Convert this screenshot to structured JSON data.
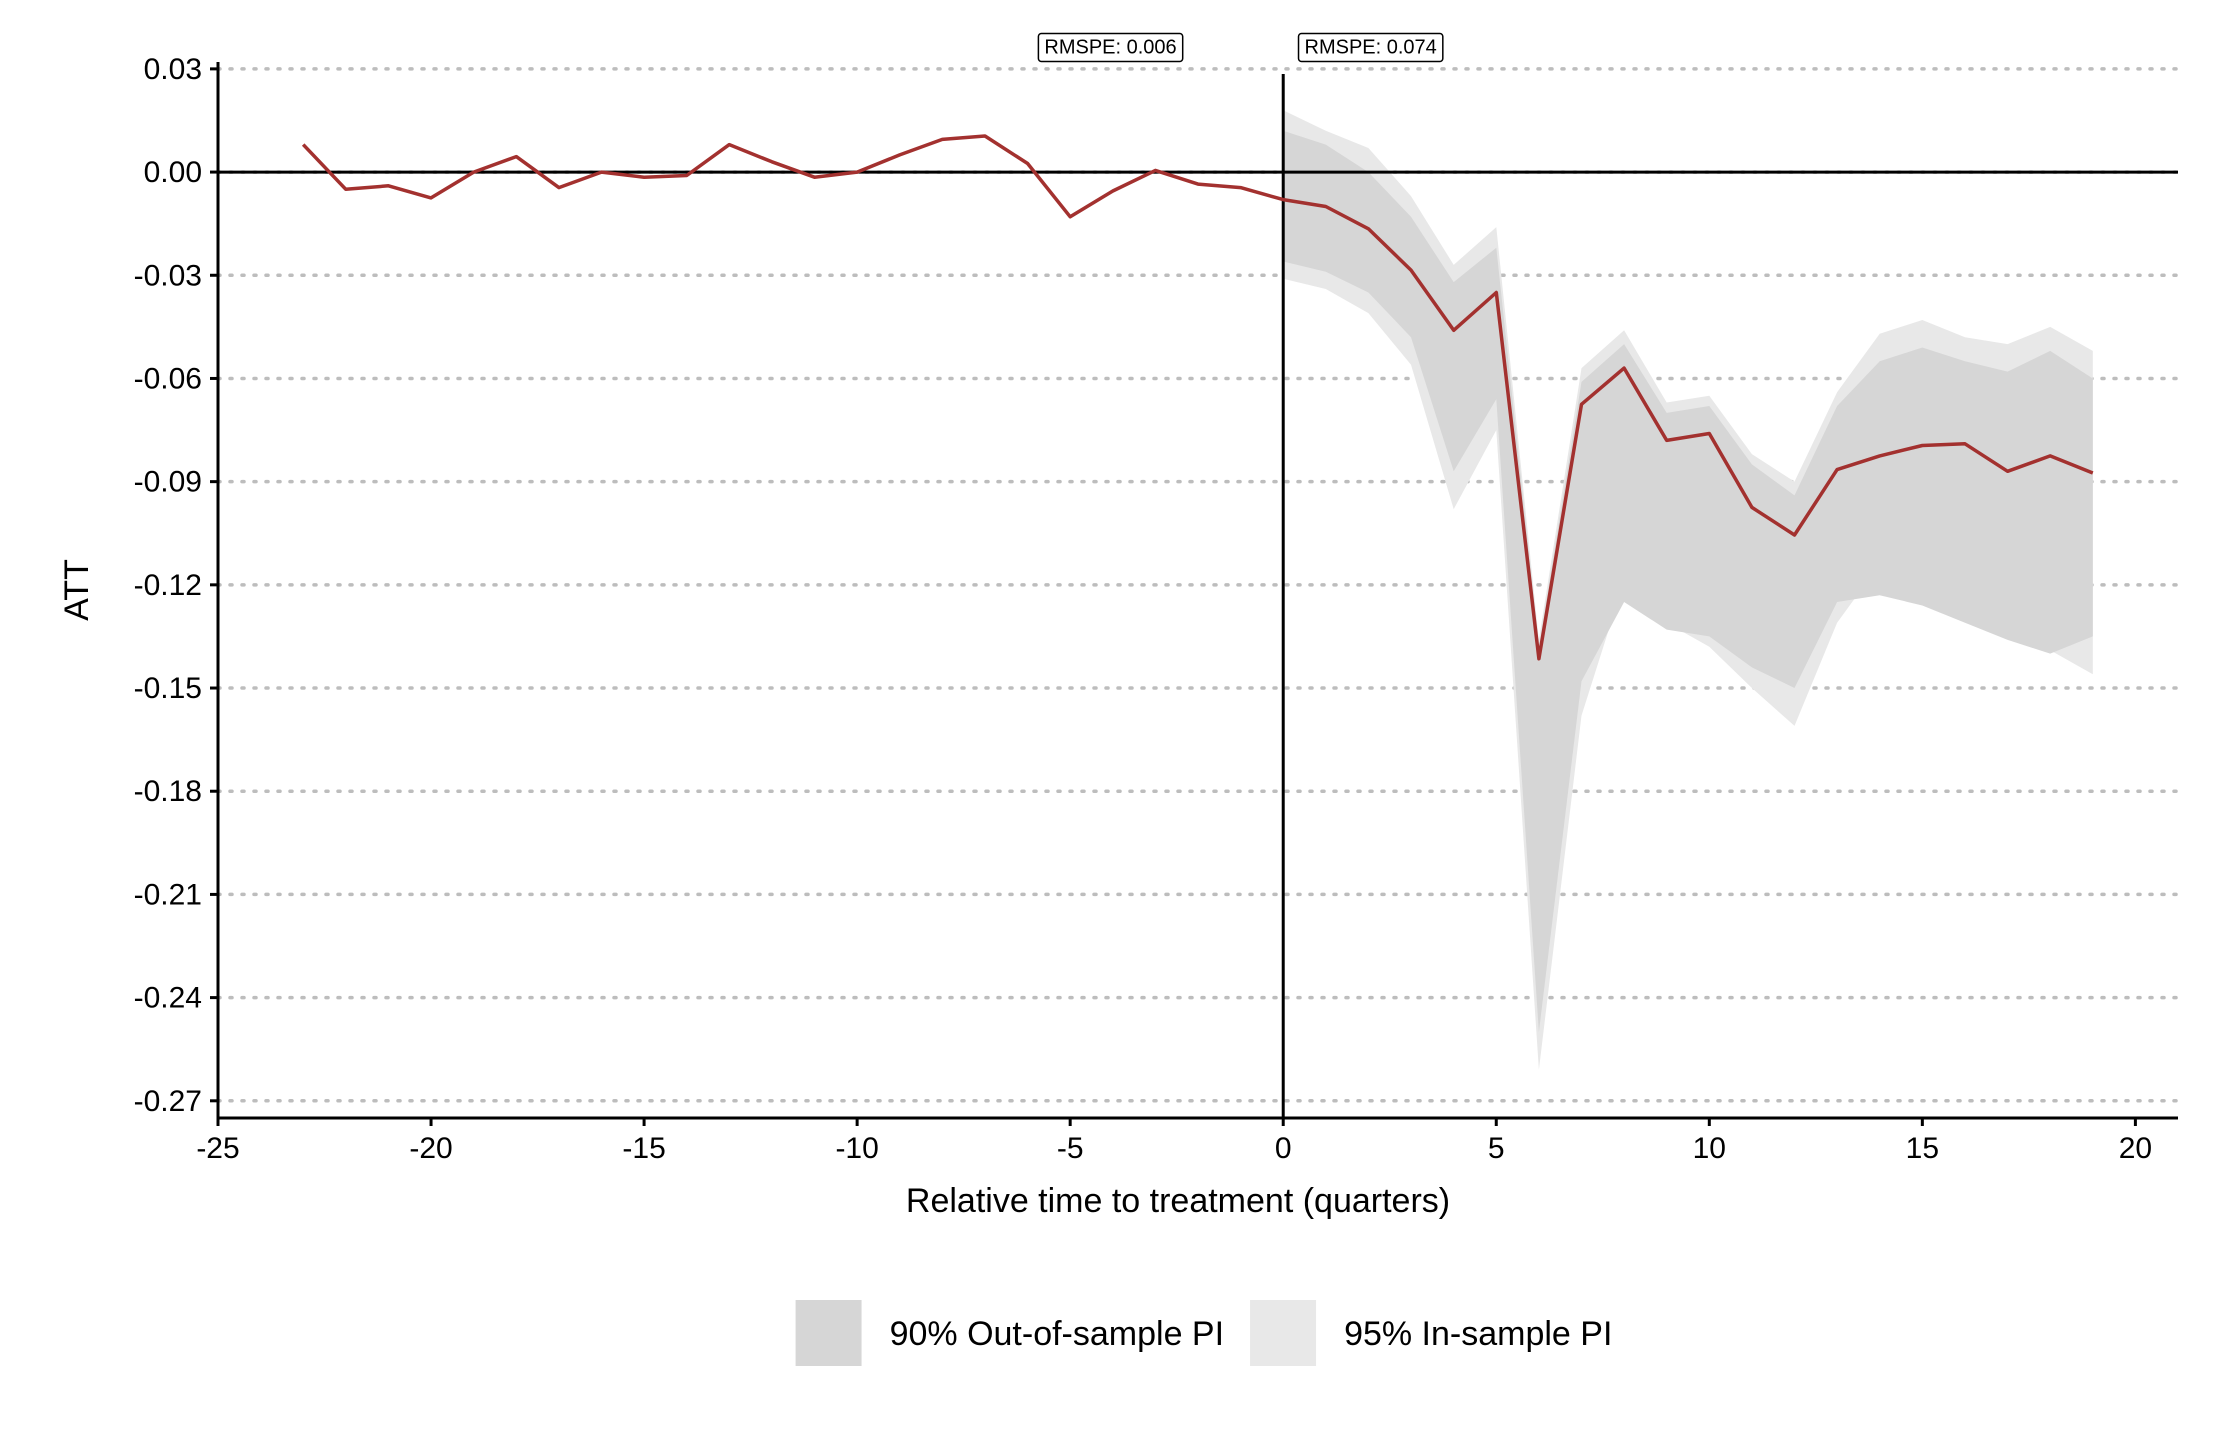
{
  "chart_data": {
    "type": "line",
    "title": "",
    "xlabel": "Relative time to treatment (quarters)",
    "ylabel": "ATT",
    "xlim": [
      -25,
      21
    ],
    "ylim": [
      -0.275,
      0.032
    ],
    "x_ticks": [
      -25,
      -20,
      -15,
      -10,
      -5,
      0,
      5,
      10,
      15,
      20
    ],
    "x_tick_labels": [
      "-25",
      "-20",
      "-15",
      "-10",
      "-5",
      "0",
      "5",
      "10",
      "15",
      "20"
    ],
    "y_ticks": [
      0.03,
      0.0,
      -0.03,
      -0.06,
      -0.09,
      -0.12,
      -0.15,
      -0.18,
      -0.21,
      -0.24,
      -0.27
    ],
    "y_tick_labels": [
      "0.03",
      "0.00",
      "-0.03",
      "-0.06",
      "-0.09",
      "-0.12",
      "-0.15",
      "-0.18",
      "-0.21",
      "-0.24",
      "-0.27"
    ],
    "grid": "horizontal dotted",
    "reference_lines": {
      "horizontal_y": 0,
      "vertical_x": 0
    },
    "colors": {
      "line": "#a3312f",
      "band_90": "#d6d6d6",
      "band_95": "#e8e8e8",
      "grid": "#bdbdbd"
    },
    "annotations": [
      {
        "text": "RMSPE: 0.006",
        "x": -2.5,
        "y": 0.036,
        "anchor": "end"
      },
      {
        "text": "RMSPE: 0.074",
        "x": 0.5,
        "y": 0.036,
        "anchor": "start"
      }
    ],
    "series": [
      {
        "x": [
          -23,
          -22,
          -21,
          -20,
          -19,
          -18,
          -17,
          -16,
          -15,
          -14,
          -13,
          -12,
          -11,
          -10,
          -9,
          -8,
          -7,
          -6,
          -5,
          -4,
          -3,
          -2,
          -1,
          0,
          1,
          2,
          3,
          4,
          5,
          6,
          7,
          8,
          9,
          10,
          11,
          12,
          13,
          14,
          15,
          16,
          17,
          18,
          19
        ],
        "y": [
          0.008,
          -0.005,
          -0.004,
          -0.0075,
          0.0,
          0.0045,
          -0.0045,
          0.0,
          -0.0015,
          -0.001,
          0.008,
          0.003,
          -0.0015,
          0.0,
          0.005,
          0.0095,
          0.0105,
          0.0025,
          -0.013,
          -0.0055,
          0.0005,
          -0.0035,
          -0.0045,
          -0.008,
          -0.01,
          -0.0165,
          -0.0285,
          -0.046,
          -0.035,
          -0.1415,
          -0.0675,
          -0.057,
          -0.078,
          -0.076,
          -0.0975,
          -0.1055,
          -0.0865,
          -0.0825,
          -0.0795,
          -0.079,
          -0.087,
          -0.0825,
          -0.0875
        ]
      }
    ],
    "bands": [
      {
        "name": "95% In-sample PI",
        "x": [
          0,
          1,
          2,
          3,
          4,
          5,
          6,
          7,
          8,
          9,
          10,
          11,
          12,
          13,
          14,
          15,
          16,
          17,
          18,
          19
        ],
        "upper": [
          0.018,
          0.012,
          0.007,
          -0.007,
          -0.027,
          -0.016,
          -0.136,
          -0.057,
          -0.046,
          -0.067,
          -0.065,
          -0.082,
          -0.09,
          -0.064,
          -0.047,
          -0.043,
          -0.048,
          -0.05,
          -0.045,
          -0.052
        ],
        "lower": [
          -0.031,
          -0.034,
          -0.041,
          -0.056,
          -0.098,
          -0.075,
          -0.261,
          -0.158,
          -0.119,
          -0.131,
          -0.138,
          -0.15,
          -0.161,
          -0.131,
          -0.114,
          -0.116,
          -0.124,
          -0.133,
          -0.139,
          -0.146
        ]
      },
      {
        "name": "90% Out-of-sample PI",
        "x": [
          0,
          1,
          2,
          3,
          4,
          5,
          6,
          7,
          8,
          9,
          10,
          11,
          12,
          13,
          14,
          15,
          16,
          17,
          18,
          19
        ],
        "upper": [
          0.012,
          0.008,
          0.0,
          -0.013,
          -0.032,
          -0.022,
          -0.138,
          -0.061,
          -0.05,
          -0.07,
          -0.068,
          -0.085,
          -0.094,
          -0.068,
          -0.055,
          -0.051,
          -0.055,
          -0.058,
          -0.052,
          -0.06
        ],
        "lower": [
          -0.026,
          -0.029,
          -0.035,
          -0.048,
          -0.087,
          -0.066,
          -0.25,
          -0.148,
          -0.125,
          -0.133,
          -0.135,
          -0.144,
          -0.15,
          -0.125,
          -0.123,
          -0.126,
          -0.131,
          -0.136,
          -0.14,
          -0.135
        ]
      }
    ],
    "legend": {
      "position": "bottom",
      "items": [
        {
          "label": "90% Out-of-sample PI",
          "color": "#d6d6d6"
        },
        {
          "label": "95% In-sample PI",
          "color": "#e8e8e8"
        }
      ]
    }
  }
}
